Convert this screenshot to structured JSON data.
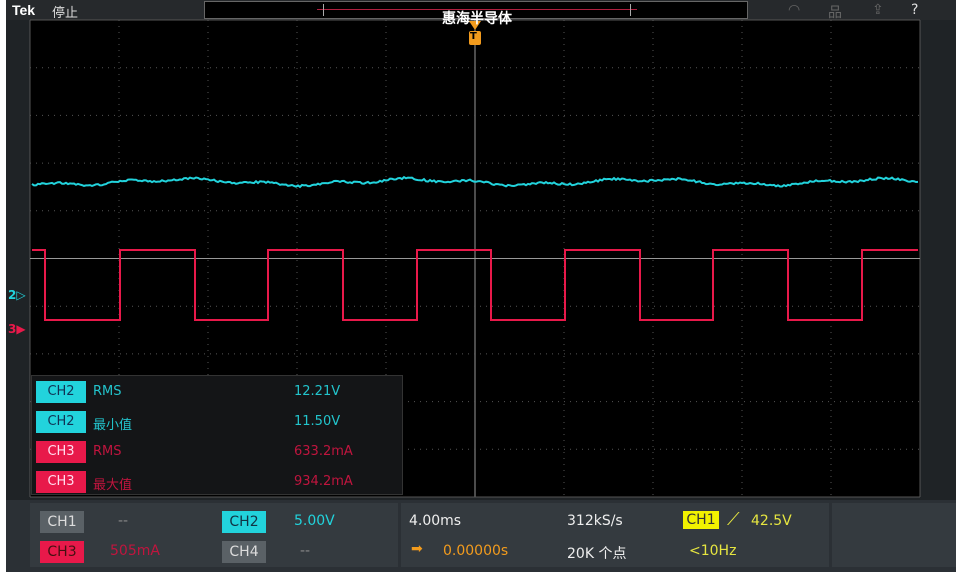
{
  "topbar": {
    "brand": "Tek",
    "status": "停止",
    "watermark": "惠海半导体",
    "icons": [
      "wifi-icon",
      "network-icon",
      "export-icon",
      "help-icon"
    ],
    "help_glyph": "?"
  },
  "markers": {
    "ch2": "2▷",
    "ch3": "3▶",
    "trigger": "T"
  },
  "colors": {
    "ch1": "#f2f200",
    "ch2": "#22d3dc",
    "ch3": "#e8194a",
    "ch4": "#5a6166",
    "background": "#000000",
    "trigger": "#f29b1d"
  },
  "measurements": [
    {
      "channel": "CH2",
      "name": "RMS",
      "value": "12.21V",
      "color": "ch2"
    },
    {
      "channel": "CH2",
      "name": "最小值",
      "value": "11.50V",
      "color": "ch2"
    },
    {
      "channel": "CH3",
      "name": "RMS",
      "value": "633.2mA",
      "color": "ch3"
    },
    {
      "channel": "CH3",
      "name": "最大值",
      "value": "934.2mA",
      "color": "ch3"
    }
  ],
  "channels": {
    "ch1": {
      "label": "CH1",
      "scale": "--"
    },
    "ch2": {
      "label": "CH2",
      "scale": "5.00V"
    },
    "ch3": {
      "label": "CH3",
      "scale": "505mA"
    },
    "ch4": {
      "label": "CH4",
      "scale": "--"
    }
  },
  "horizontal": {
    "scale": "4.00ms",
    "sample_rate": "312kS/s",
    "position": "0.00000s",
    "record_length": "20K 个点"
  },
  "trigger": {
    "source": "CH1",
    "slope": "rising",
    "level": "42.5V",
    "frequency": "<10Hz"
  }
}
